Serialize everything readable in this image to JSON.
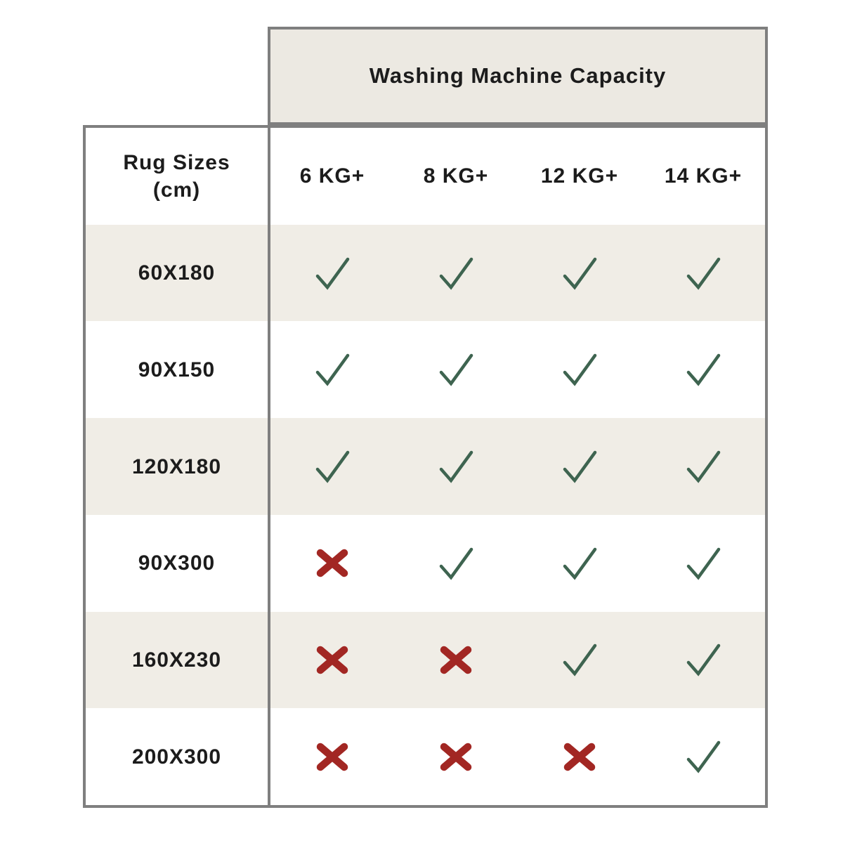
{
  "chart_data": {
    "type": "table",
    "title": "Washing Machine Capacity",
    "row_header": [
      "Rug Sizes",
      "(cm)"
    ],
    "columns": [
      "6 KG+",
      "8 KG+",
      "12 KG+",
      "14 KG+"
    ],
    "rows": [
      {
        "label": "60X180",
        "cells": [
          "check",
          "check",
          "check",
          "check"
        ]
      },
      {
        "label": "90X150",
        "cells": [
          "check",
          "check",
          "check",
          "check"
        ]
      },
      {
        "label": "120X180",
        "cells": [
          "check",
          "check",
          "check",
          "check"
        ]
      },
      {
        "label": "90X300",
        "cells": [
          "cross",
          "check",
          "check",
          "check"
        ]
      },
      {
        "label": "160X230",
        "cells": [
          "cross",
          "cross",
          "check",
          "check"
        ]
      },
      {
        "label": "200X300",
        "cells": [
          "cross",
          "cross",
          "cross",
          "check"
        ]
      }
    ]
  },
  "icons": {
    "check": "check-icon",
    "cross": "cross-icon"
  },
  "colors": {
    "check_green": "#3e6450",
    "cross_red": "#a22723",
    "border_gray": "#7f7f7f",
    "header_beige": "#ece9e2",
    "stripe_beige": "#f0ede6",
    "text_black": "#1c1c1c",
    "background": "#ffffff"
  }
}
